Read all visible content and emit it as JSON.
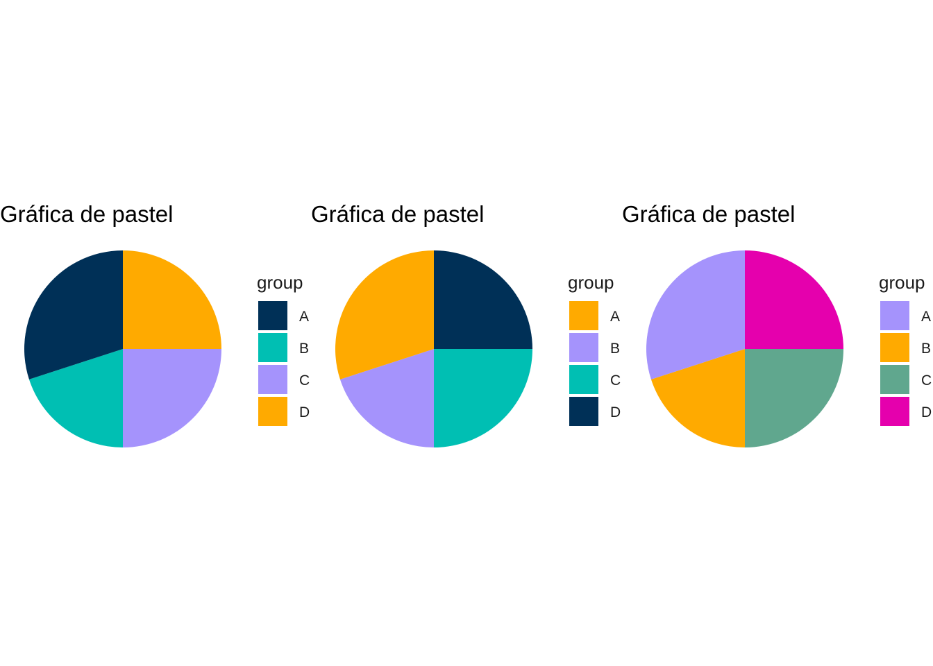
{
  "chart_data": [
    {
      "type": "pie",
      "title": "Gráfica de pastel",
      "legend_title": "group",
      "legend_position": "right",
      "categories": [
        "A",
        "B",
        "C",
        "D"
      ],
      "values": [
        25,
        25,
        20,
        30
      ],
      "colors": [
        "#FFAA00",
        "#A593FC",
        "#00BFB3",
        "#003057"
      ],
      "legend_colors": [
        "#003057",
        "#00BFB3",
        "#A593FC",
        "#FFAA00"
      ]
    },
    {
      "type": "pie",
      "title": "Gráfica de pastel",
      "legend_title": "group",
      "legend_position": "right",
      "categories": [
        "A",
        "B",
        "C",
        "D"
      ],
      "values": [
        25,
        25,
        20,
        30
      ],
      "colors": [
        "#003057",
        "#00BFB3",
        "#A593FC",
        "#FFAA00"
      ],
      "legend_colors": [
        "#FFAA00",
        "#A593FC",
        "#00BFB3",
        "#003057"
      ]
    },
    {
      "type": "pie",
      "title": "Gráfica de pastel",
      "legend_title": "group",
      "legend_position": "right",
      "categories": [
        "A",
        "B",
        "C",
        "D"
      ],
      "values": [
        25,
        25,
        20,
        30
      ],
      "colors": [
        "#E500AD",
        "#60A78E",
        "#FFAA00",
        "#A593FC"
      ],
      "legend_colors": [
        "#A593FC",
        "#FFAA00",
        "#60A78E",
        "#E500AD"
      ]
    }
  ]
}
